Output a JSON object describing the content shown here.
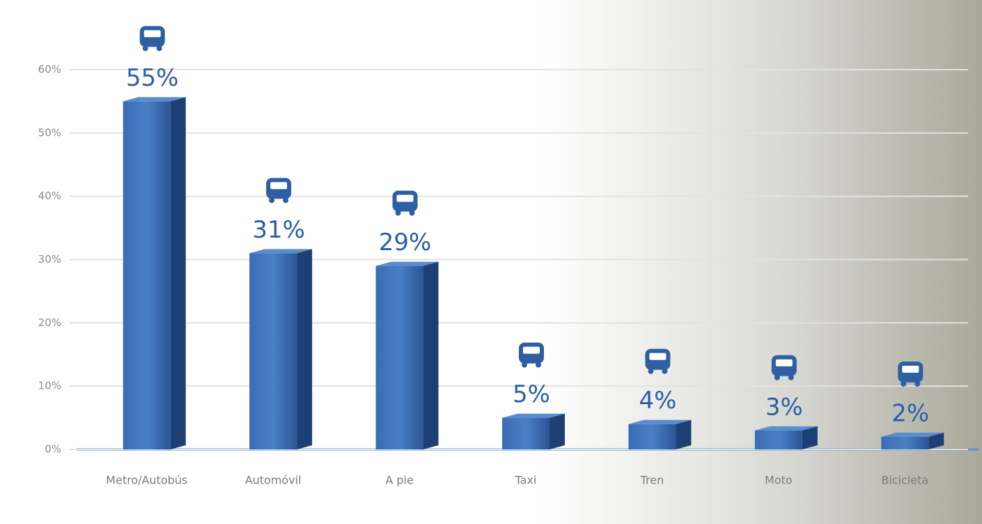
{
  "chart_data": {
    "type": "bar",
    "categories": [
      "Metro/Autobús",
      "Automóvil",
      "A pie",
      "Taxi",
      "Tren",
      "Moto",
      "Bicicleta"
    ],
    "values": [
      55,
      31,
      29,
      5,
      4,
      3,
      2
    ],
    "value_labels": [
      "55%",
      "31%",
      "29%",
      "5%",
      "4%",
      "3%",
      "2%"
    ],
    "color": "#2f5fa3",
    "ylim": [
      0,
      60
    ],
    "yticks": [
      {
        "value": 0,
        "label": "0%"
      },
      {
        "value": 10,
        "label": "10%"
      },
      {
        "value": 20,
        "label": "20%"
      },
      {
        "value": 30,
        "label": "30%"
      },
      {
        "value": 40,
        "label": "40%"
      },
      {
        "value": 50,
        "label": "50%"
      },
      {
        "value": 60,
        "label": "60%"
      }
    ],
    "grid": true
  }
}
